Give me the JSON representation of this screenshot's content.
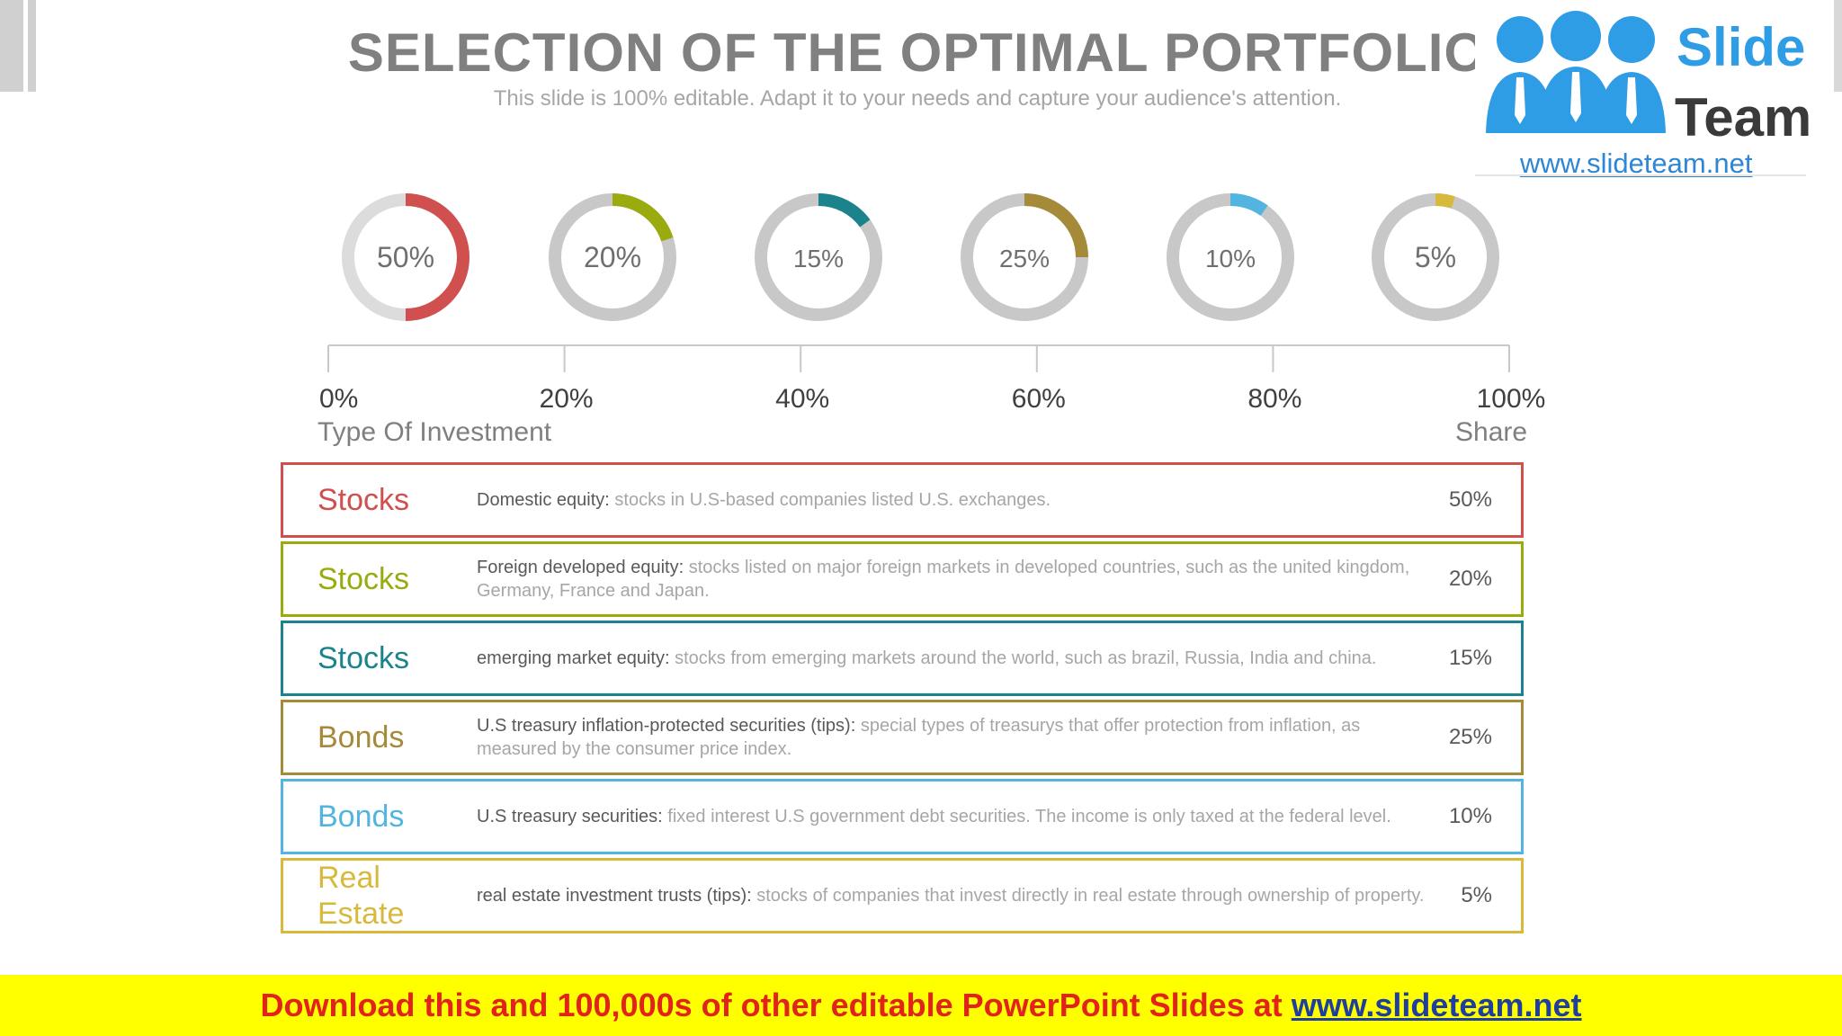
{
  "slide": {
    "title": "SELECTION OF THE OPTIMAL PORTFOLIO",
    "subtitle": "This slide is 100% editable. Adapt it to your needs and capture your audience's attention."
  },
  "logo": {
    "word1": "Slide",
    "word2": "Team",
    "url": "www.slideteam.net",
    "accent": "#2f9de6"
  },
  "headers": {
    "type": "Type Of Investment",
    "share": "Share"
  },
  "chart_data": {
    "type": "donut",
    "axis_ticks": [
      "0%",
      "20%",
      "40%",
      "60%",
      "80%",
      "100%"
    ],
    "axis_range": [
      0,
      100
    ],
    "series": [
      {
        "label": "50%",
        "value": 50,
        "color": "#d0504f"
      },
      {
        "label": "20%",
        "value": 20,
        "color": "#9aab0f"
      },
      {
        "label": "15%",
        "value": 15,
        "color": "#1a838c"
      },
      {
        "label": "25%",
        "value": 25,
        "color": "#a58a3a"
      },
      {
        "label": "10%",
        "value": 10,
        "color": "#52b5e0"
      },
      {
        "label": "5%",
        "value": 5,
        "color": "#d7ba3c"
      }
    ],
    "track_color": "#c8c8c8"
  },
  "investments": [
    {
      "type": "Stocks",
      "lead": "Domestic equity:",
      "desc": " stocks in U.S-based companies listed U.S. exchanges.",
      "share": "50%",
      "color": "#d0504f"
    },
    {
      "type": "Stocks",
      "lead": "Foreign developed equity:",
      "desc": " stocks listed on major foreign markets in developed  countries, such as the united kingdom, Germany, France and Japan.",
      "share": "20%",
      "color": "#9aab0f"
    },
    {
      "type": "Stocks",
      "lead": " emerging market equity:",
      "desc": " stocks from emerging markets around the world, such as brazil, Russia, India and china.",
      "share": "15%",
      "color": "#1a838c"
    },
    {
      "type": "Bonds",
      "lead": " U.S treasury inflation-protected securities (tips):",
      "desc": " special types of treasurys that offer protection from inflation, as measured by the consumer price index.",
      "share": "25%",
      "color": "#a58a3a"
    },
    {
      "type": "Bonds",
      "lead": " U.S treasury securities:",
      "desc": " fixed interest U.S government debt securities. The income is only taxed at the federal level.",
      "share": "10%",
      "color": "#52b5e0"
    },
    {
      "type": "Real Estate",
      "lead": " real estate investment trusts (tips):",
      "desc": " stocks of companies that invest directly in real estate through ownership of property.",
      "share": "5%",
      "color": "#d7ba3c"
    }
  ],
  "banner": {
    "text": "Download this and 100,000s of other editable PowerPoint Slides at",
    "link": "www.slideteam.net",
    "background": "#ffff00",
    "text_color": "#e2231a"
  }
}
